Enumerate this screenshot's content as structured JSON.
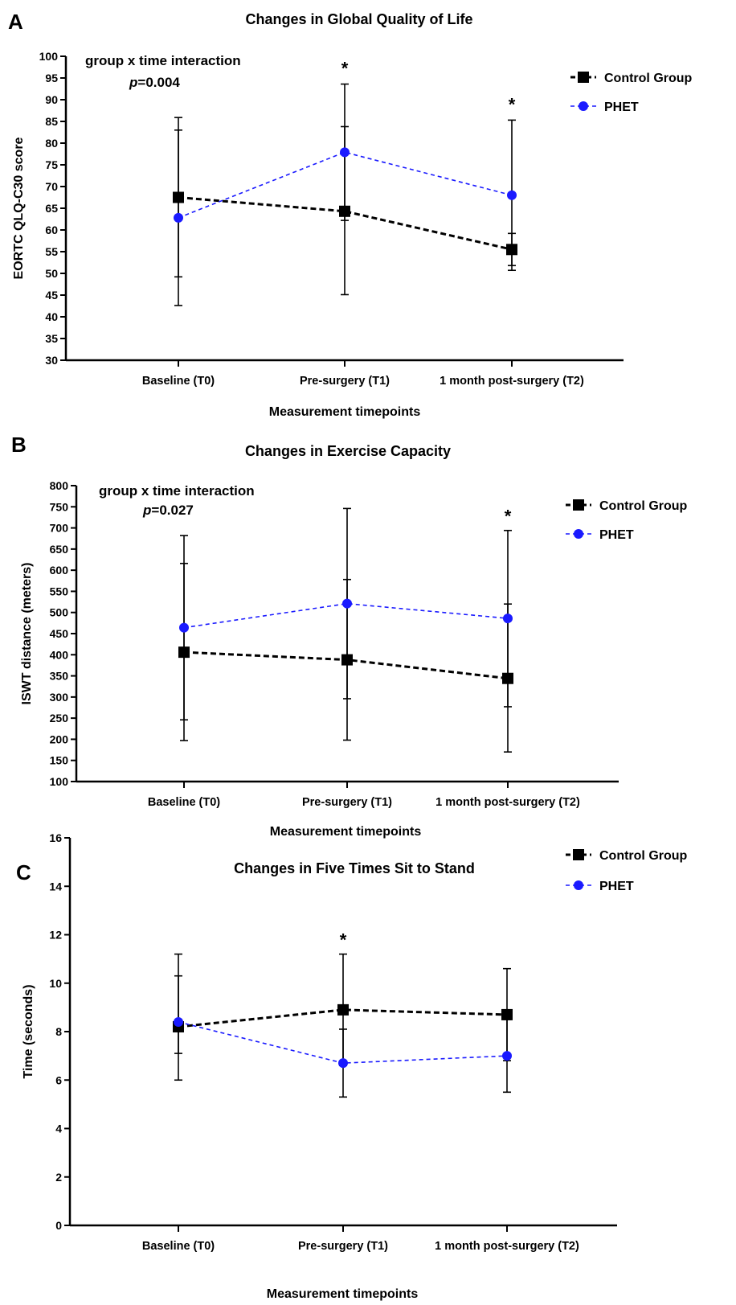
{
  "colors": {
    "control": "#000000",
    "phet": "#1a1aff"
  },
  "chart_data": [
    {
      "panel": "A",
      "type": "line",
      "title": "Changes in Global Quality of Life",
      "xlabel": "Measurement timepoints",
      "ylabel": "EORTC QLQ-C30 score",
      "categories": [
        "Baseline (T0)",
        "Pre-surgery (T1)",
        "1 month post-surgery (T2)"
      ],
      "ylim": [
        30,
        100
      ],
      "yticks": [
        30,
        35,
        40,
        45,
        50,
        55,
        60,
        65,
        70,
        75,
        80,
        85,
        90,
        95,
        100
      ],
      "annotation_line1": "group x time interaction",
      "annotation_p": "p",
      "annotation_value": "=0.004",
      "significance_marker": "*",
      "significant_timepoints": [
        1,
        2
      ],
      "series": [
        {
          "name": "Control Group",
          "marker": "square",
          "values": [
            67.5,
            64.3,
            55.5
          ],
          "err_low": [
            49.2,
            45.1,
            51.8
          ],
          "err_high": [
            85.9,
            83.8,
            59.2
          ]
        },
        {
          "name": "PHET",
          "marker": "circle",
          "values": [
            62.8,
            77.9,
            68.0
          ],
          "err_low": [
            42.6,
            62.2,
            50.7
          ],
          "err_high": [
            83.0,
            93.6,
            85.3
          ]
        }
      ]
    },
    {
      "panel": "B",
      "type": "line",
      "title": "Changes in Exercise Capacity",
      "xlabel": "Measurement timepoints",
      "ylabel": "ISWT distance (meters)",
      "categories": [
        "Baseline (T0)",
        "Pre-surgery (T1)",
        "1 month post-surgery (T2)"
      ],
      "ylim": [
        100,
        800
      ],
      "yticks": [
        100,
        150,
        200,
        250,
        300,
        350,
        400,
        450,
        500,
        550,
        600,
        650,
        700,
        750,
        800
      ],
      "annotation_line1": "group x time interaction",
      "annotation_p": "p",
      "annotation_value": "=0.027",
      "significance_marker": "*",
      "significant_timepoints": [
        2
      ],
      "series": [
        {
          "name": "Control Group",
          "marker": "square",
          "values": [
            406,
            388,
            344
          ],
          "err_low": [
            197,
            198,
            170
          ],
          "err_high": [
            616,
            578,
            520
          ]
        },
        {
          "name": "PHET",
          "marker": "circle",
          "values": [
            464,
            521,
            486
          ],
          "err_low": [
            246,
            296,
            277
          ],
          "err_high": [
            682,
            746,
            694
          ]
        }
      ]
    },
    {
      "panel": "C",
      "type": "line",
      "title": "Changes in Five Times Sit to Stand",
      "xlabel": "Measurement timepoints",
      "ylabel": "Time (seconds)",
      "categories": [
        "Baseline (T0)",
        "Pre-surgery (T1)",
        "1 month post-surgery (T2)"
      ],
      "ylim": [
        0,
        16
      ],
      "yticks": [
        0,
        2,
        4,
        6,
        8,
        10,
        12,
        14,
        16
      ],
      "annotation_line1": "",
      "annotation_p": "",
      "annotation_value": "",
      "significance_marker": "*",
      "significant_timepoints": [
        1
      ],
      "series": [
        {
          "name": "Control Group",
          "marker": "square",
          "values": [
            8.2,
            8.9,
            8.7
          ],
          "err_low": [
            6.0,
            6.6,
            6.8
          ],
          "err_high": [
            10.3,
            11.2,
            10.6
          ]
        },
        {
          "name": "PHET",
          "marker": "circle",
          "values": [
            8.4,
            6.7,
            7.0
          ],
          "err_low": [
            7.1,
            5.3,
            5.5
          ],
          "err_high": [
            11.2,
            8.1,
            8.5
          ]
        }
      ]
    }
  ]
}
